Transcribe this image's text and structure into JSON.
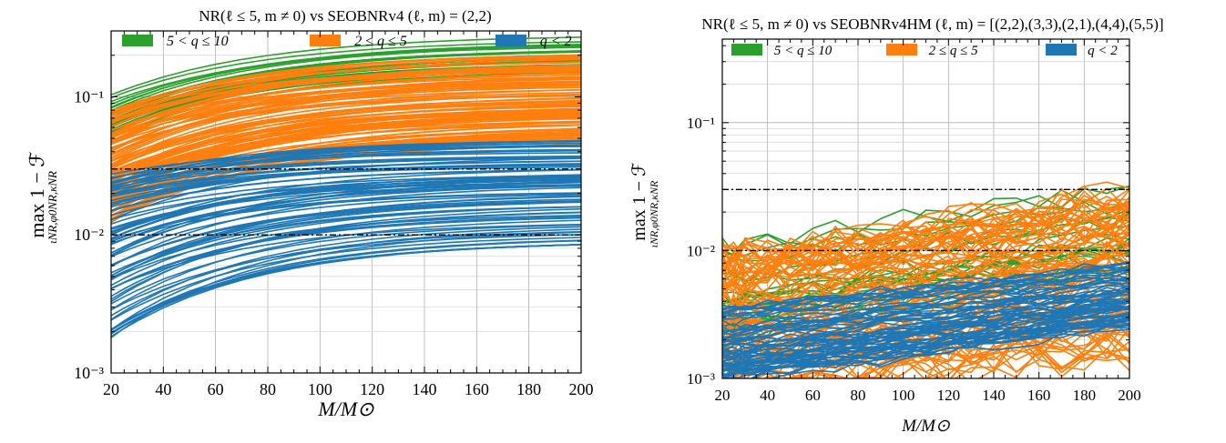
{
  "chart_data": [
    {
      "type": "line",
      "title": "NR(ℓ ≤ 5, m ≠ 0) vs SEOBNRv4 (ℓ, m) = (2,2)",
      "xlabel": "M/M⊙",
      "ylabel": "max 1 − ℱ",
      "ylabel_sub": "ιNR,φ0NR,κNR",
      "xlim": [
        20,
        200
      ],
      "ylim": [
        0.001,
        0.3
      ],
      "yscale": "log",
      "grid": true,
      "legend_position": "top",
      "x_ticks": [
        20,
        40,
        60,
        80,
        100,
        120,
        140,
        160,
        180,
        200
      ],
      "y_ticks": [
        {
          "v": 0.001,
          "label": "10⁻³"
        },
        {
          "v": 0.01,
          "label": "10⁻²"
        },
        {
          "v": 0.1,
          "label": "10⁻¹"
        }
      ],
      "reference_lines": [
        0.03,
        0.01
      ],
      "series": [
        {
          "name": "5 < q ≤ 10",
          "color": "#2ca02c",
          "count": 30,
          "start_range": [
            0.05,
            0.105
          ],
          "end_range": [
            0.15,
            0.27
          ],
          "shape": "saturate",
          "noise": 0
        },
        {
          "name": "2 ≤ q ≤ 5",
          "color": "#ff7f0e",
          "count": 110,
          "start_range": [
            0.012,
            0.08
          ],
          "end_range": [
            0.045,
            0.2
          ],
          "shape": "saturate",
          "noise": 0
        },
        {
          "name": "q < 2",
          "color": "#1f77b4",
          "count": 80,
          "start_range": [
            0.0018,
            0.028
          ],
          "end_range": [
            0.0085,
            0.048
          ],
          "shape": "saturate",
          "noise": 0
        }
      ]
    },
    {
      "type": "line",
      "title": "NR(ℓ ≤ 5, m ≠ 0) vs SEOBNRv4HM (ℓ, m) = [(2,2),(3,3),(2,1),(4,4),(5,5)]",
      "xlabel": "M/M⊙",
      "ylabel": "max 1 − ℱ",
      "ylabel_sub": "ιNR,φ0NR,κNR",
      "xlim": [
        20,
        200
      ],
      "ylim": [
        0.001,
        0.45
      ],
      "yscale": "log",
      "grid": true,
      "legend_position": "top",
      "x_ticks": [
        20,
        40,
        60,
        80,
        100,
        120,
        140,
        160,
        180,
        200
      ],
      "y_ticks": [
        {
          "v": 0.001,
          "label": "10⁻³"
        },
        {
          "v": 0.01,
          "label": "10⁻²"
        },
        {
          "v": 0.1,
          "label": "10⁻¹"
        }
      ],
      "reference_lines": [
        0.03,
        0.01
      ],
      "series": [
        {
          "name": "5 < q ≤ 10",
          "color": "#2ca02c",
          "count": 25,
          "start_range": [
            0.002,
            0.011
          ],
          "end_range": [
            0.006,
            0.032
          ],
          "shape": "linear",
          "noise": 0.15
        },
        {
          "name": "2 ≤ q ≤ 5",
          "color": "#ff7f0e",
          "count": 90,
          "start_range": [
            0.0008,
            0.009
          ],
          "end_range": [
            0.0016,
            0.027
          ],
          "shape": "linear",
          "noise": 0.3
        },
        {
          "name": "q < 2",
          "color": "#1f77b4",
          "count": 70,
          "start_range": [
            0.0009,
            0.0035
          ],
          "end_range": [
            0.0025,
            0.008
          ],
          "shape": "linear",
          "noise": 0.08
        }
      ]
    }
  ]
}
